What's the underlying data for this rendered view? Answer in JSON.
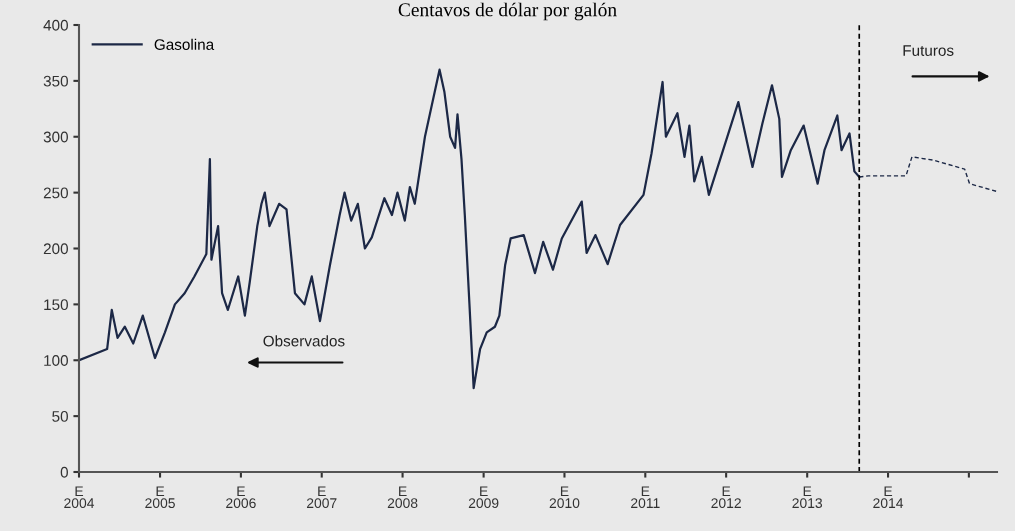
{
  "chart_data": {
    "type": "line",
    "title": "Centavos de dólar por galón",
    "series": [
      {
        "name": "Gasolina",
        "color": "#1c2846",
        "line_style": "solid",
        "x": [
          "2004-01-01",
          "2004-05-07",
          "2004-05-28",
          "2004-06-23",
          "2004-07-26",
          "2004-09-02",
          "2004-10-15",
          "2004-12-09",
          "2005-01-23",
          "2005-03-09",
          "2005-04-22",
          "2005-06-05",
          "2005-07-29",
          "2005-08-14",
          "2005-08-21",
          "2005-09-20",
          "2005-10-08",
          "2005-11-03",
          "2005-12-20",
          "2006-01-19",
          "2006-02-10",
          "2006-03-16",
          "2006-04-04",
          "2006-04-19",
          "2006-05-10",
          "2006-06-23",
          "2006-07-26",
          "2006-09-02",
          "2006-10-15",
          "2006-11-17",
          "2006-12-24",
          "2007-02-07",
          "2007-03-23",
          "2007-04-14",
          "2007-05-14",
          "2007-06-13",
          "2007-07-15",
          "2007-08-15",
          "2007-10-11",
          "2007-11-14",
          "2007-12-09",
          "2008-01-11",
          "2008-02-03",
          "2008-02-25",
          "2008-04-11",
          "2008-05-25",
          "2008-06-16",
          "2008-07-08",
          "2008-08-03",
          "2008-08-25",
          "2008-09-05",
          "2008-09-23",
          "2008-10-08",
          "2008-10-29",
          "2008-11-17",
          "2008-12-16",
          "2009-01-15",
          "2009-02-21",
          "2009-03-13",
          "2009-04-08",
          "2009-05-03",
          "2009-07-01",
          "2009-08-21",
          "2009-09-27",
          "2009-11-10",
          "2009-12-20",
          "2010-03-20",
          "2010-04-11",
          "2010-05-21",
          "2010-07-15",
          "2010-09-09",
          "2010-12-24",
          "2011-01-29",
          "2011-03-20",
          "2011-04-04",
          "2011-05-26",
          "2011-06-27",
          "2011-07-19",
          "2011-08-10",
          "2011-09-13",
          "2011-10-15",
          "2012-02-25",
          "2012-04-29",
          "2012-06-13",
          "2012-07-26",
          "2012-08-28",
          "2012-09-09",
          "2012-10-19",
          "2012-12-16",
          "2013-02-17",
          "2013-03-20",
          "2013-05-17",
          "2013-06-05",
          "2013-07-11",
          "2013-08-02",
          "2013-08-24"
        ],
        "values": [
          100,
          110,
          145,
          120,
          130,
          115,
          140,
          102,
          125,
          150,
          160,
          175,
          195,
          280,
          190,
          220,
          160,
          145,
          175,
          140,
          170,
          220,
          240,
          250,
          220,
          240,
          235,
          160,
          150,
          175,
          135,
          185,
          230,
          250,
          225,
          240,
          200,
          210,
          245,
          230,
          250,
          225,
          255,
          240,
          300,
          340,
          360,
          340,
          300,
          290,
          320,
          280,
          230,
          150,
          75,
          110,
          125,
          130,
          140,
          185,
          209,
          212,
          178,
          206,
          181,
          209,
          242,
          196,
          212,
          186,
          221,
          248,
          285,
          349,
          300,
          321,
          282,
          310,
          260,
          282,
          248,
          331,
          273,
          312,
          346,
          316,
          264,
          288,
          310,
          258,
          288,
          319,
          288,
          303,
          269,
          264
        ]
      },
      {
        "color": "#1c2846",
        "line_style": "dashed",
        "x": [
          "2013-08-24",
          "2013-10-04",
          "2014-03-23",
          "2014-04-19",
          "2014-07-26",
          "2014-12-13",
          "2015-01-04",
          "2015-05-08"
        ],
        "values": [
          264,
          265,
          265,
          282,
          279,
          271,
          258,
          251
        ]
      }
    ],
    "xlim": [
      "2004-01-01",
      "2015-05-08"
    ],
    "xticks": [
      {
        "value": "2004-01-01",
        "label": "E\n2004"
      },
      {
        "value": "2005-01-01",
        "label": "E\n2005"
      },
      {
        "value": "2006-01-01",
        "label": "E\n2006"
      },
      {
        "value": "2007-01-01",
        "label": "E\n2007"
      },
      {
        "value": "2008-01-01",
        "label": "E\n2008"
      },
      {
        "value": "2009-01-01",
        "label": "E\n2009"
      },
      {
        "value": "2010-01-01",
        "label": "E\n2010"
      },
      {
        "value": "2011-01-01",
        "label": "E\n2011"
      },
      {
        "value": "2012-01-01",
        "label": "E\n2012"
      },
      {
        "value": "2013-01-01",
        "label": "E\n2013"
      },
      {
        "value": "2014-01-01",
        "label": "E\n2014"
      },
      {
        "value": "2015-01-01",
        "label": null
      }
    ],
    "ylim": [
      0,
      400
    ],
    "yticks": [
      0,
      50,
      100,
      150,
      200,
      250,
      300,
      350,
      400
    ],
    "ref_lines": [
      {
        "axis": "x",
        "value": "2013-08-24",
        "color": "#000000",
        "line_style": "dashed"
      }
    ],
    "annotations": [
      "Observados",
      "Futuros"
    ],
    "grid": false,
    "legend": "top left"
  }
}
